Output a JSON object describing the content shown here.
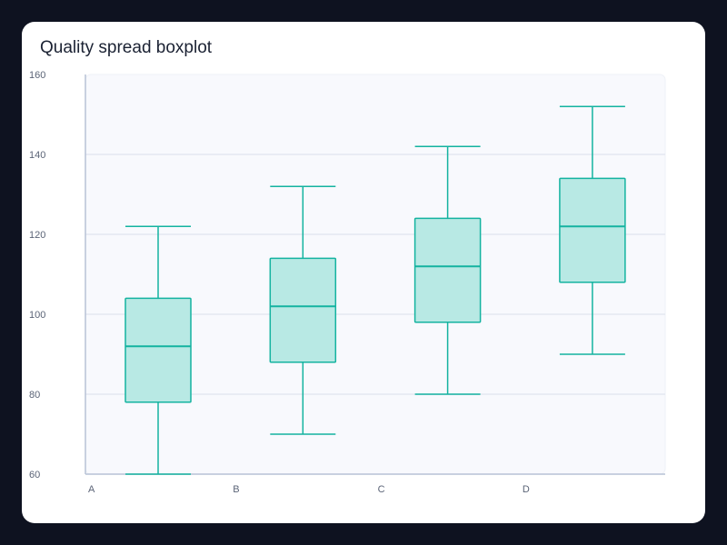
{
  "title": "Quality spread boxplot",
  "chart_data": {
    "type": "boxplot",
    "title": "Quality spread boxplot",
    "xlabel": "",
    "ylabel": "",
    "categories": [
      "A",
      "B",
      "C",
      "D"
    ],
    "ylim": [
      60,
      160
    ],
    "yticks": [
      60,
      80,
      100,
      120,
      140,
      160
    ],
    "grid": true,
    "boxes": [
      {
        "category": "A",
        "min": 60,
        "q1": 78,
        "median": 92,
        "q3": 104,
        "max": 122
      },
      {
        "category": "B",
        "min": 70,
        "q1": 88,
        "median": 102,
        "q3": 114,
        "max": 132
      },
      {
        "category": "C",
        "min": 80,
        "q1": 98,
        "median": 112,
        "q3": 124,
        "max": 142
      },
      {
        "category": "D",
        "min": 90,
        "q1": 108,
        "median": 122,
        "q3": 134,
        "max": 152
      }
    ],
    "colors": {
      "box_fill": "#b8e9e4",
      "box_stroke": "#14b3a0",
      "plot_bg": "#f8f9fd",
      "grid": "#e4e8f1",
      "axis": "#b7c2d6"
    }
  }
}
